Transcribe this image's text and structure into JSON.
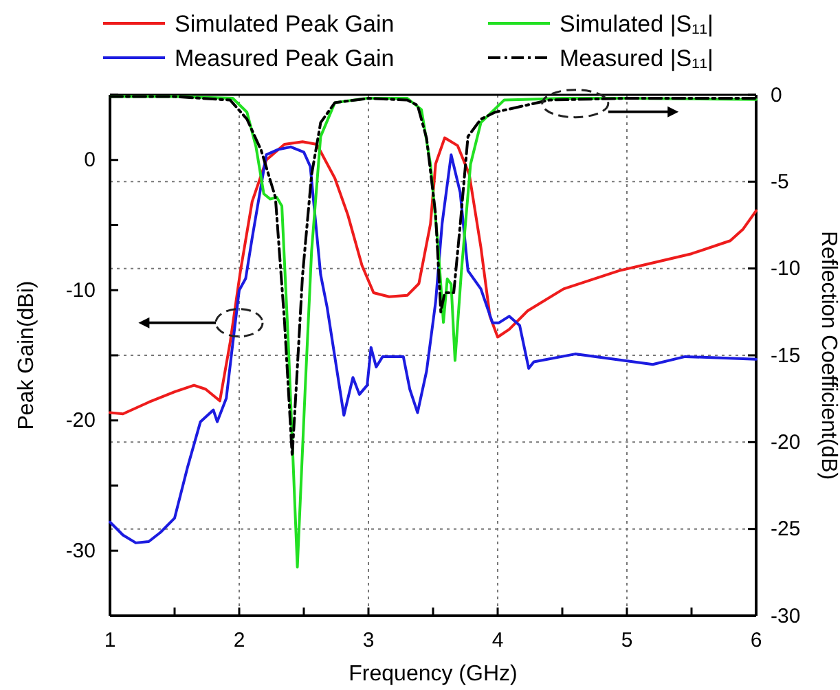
{
  "chart_data": {
    "type": "line",
    "xlabel": "Frequency (GHz)",
    "ylabel": "Peak Gain(dBi)",
    "y2label": "Reflection Coefficient(dB)",
    "xlim": [
      1,
      6
    ],
    "xticks": [
      1,
      {
        "value": 1.5,
        "label": null
      },
      2,
      {
        "value": 2.5,
        "label": null
      },
      3,
      {
        "value": 3.5,
        "label": null
      },
      4,
      {
        "value": 4.5,
        "label": null
      },
      5,
      {
        "value": 5.5,
        "label": null
      },
      6
    ],
    "ylim": [
      -35,
      5
    ],
    "yticks": [
      {
        "value": -35,
        "label": null
      },
      -30,
      {
        "value": -25,
        "label": null
      },
      -20,
      {
        "value": -15,
        "label": null
      },
      -10,
      {
        "value": -5,
        "label": null
      },
      0,
      {
        "value": 5,
        "label": null
      }
    ],
    "y2lim": [
      -30,
      0
    ],
    "y2ticks": [
      -30,
      -25,
      -20,
      -15,
      -10,
      -5,
      0
    ],
    "grid": true,
    "legend": "top",
    "line_style": "solid",
    "marker": "none",
    "series": [
      {
        "name": "Simulated Peak Gain",
        "color": "#ee1c1c",
        "x": [
          1,
          1.1,
          1.3,
          1.5,
          1.65,
          1.74,
          1.85,
          1.93,
          2.01,
          2.1,
          2.21,
          2.35,
          2.49,
          2.6,
          2.74,
          2.84,
          2.95,
          3.04,
          3.16,
          3.3,
          3.39,
          3.48,
          3.52,
          3.59,
          3.69,
          3.78,
          3.87,
          3.94,
          4.0,
          4.09,
          4.23,
          4.51,
          4.94,
          5.2,
          5.5,
          5.8,
          5.9,
          6
        ],
        "values": [
          -19.4,
          -19.5,
          -18.6,
          -17.8,
          -17.3,
          -17.6,
          -18.5,
          -14,
          -8.5,
          -3.2,
          0,
          1.2,
          1.4,
          1.2,
          -1.4,
          -4.2,
          -8.1,
          -10.2,
          -10.5,
          -10.4,
          -9.5,
          -4.9,
          -0.3,
          1.7,
          1.1,
          -1.1,
          -6.7,
          -12,
          -13.6,
          -13,
          -11.6,
          -9.9,
          -8.5,
          -7.9,
          -7.2,
          -6.2,
          -5.3,
          -3.9
        ]
      },
      {
        "name": "Measured Peak Gain",
        "color": "#1c1ce0",
        "x": [
          1,
          1.1,
          1.2,
          1.3,
          1.39,
          1.5,
          1.6,
          1.7,
          1.8,
          1.83,
          1.9,
          1.95,
          2.0,
          2.05,
          2.1,
          2.21,
          2.3,
          2.4,
          2.5,
          2.55,
          2.63,
          2.68,
          2.81,
          2.88,
          2.93,
          2.99,
          3.02,
          3.06,
          3.11,
          3.27,
          3.32,
          3.38,
          3.45,
          3.52,
          3.57,
          3.64,
          3.71,
          3.77,
          3.87,
          3.96,
          4.01,
          4.09,
          4.17,
          4.24,
          4.28,
          4.6,
          5.2,
          5.45,
          6
        ],
        "values": [
          -27.8,
          -28.8,
          -29.4,
          -29.3,
          -28.6,
          -27.5,
          -23.6,
          -20.1,
          -19.2,
          -20.1,
          -18.3,
          -14.1,
          -10,
          -9.1,
          -6,
          0.4,
          0.8,
          1.0,
          0.6,
          -0.5,
          -8.8,
          -11.3,
          -19.6,
          -16.7,
          -18,
          -17.3,
          -14.4,
          -15.9,
          -15.1,
          -15.1,
          -17.6,
          -19.4,
          -16.2,
          -10.9,
          -4.9,
          0.4,
          -2.5,
          -8.5,
          -9.9,
          -12.5,
          -12.5,
          -12.0,
          -12.7,
          -16.0,
          -15.5,
          -14.9,
          -15.7,
          -15.1,
          -15.3
        ]
      },
      {
        "name": "Simulated |S₁₁|",
        "color": "#22e022",
        "axis": "y2",
        "x": [
          1,
          1.5,
          1.95,
          2.06,
          2.13,
          2.19,
          2.24,
          2.29,
          2.33,
          2.38,
          2.45,
          2.51,
          2.56,
          2.63,
          2.74,
          2.99,
          3.3,
          3.41,
          3.48,
          3.54,
          3.58,
          3.61,
          3.64,
          3.67,
          3.72,
          3.79,
          3.87,
          4.05,
          4.5,
          5,
          6
        ],
        "values": [
          -0.1,
          -0.1,
          -0.2,
          -1.0,
          -3.0,
          -5.7,
          -6.0,
          -5.9,
          -6.4,
          -14.3,
          -27.2,
          -17.0,
          -9.0,
          -2.4,
          -0.45,
          -0.2,
          -0.2,
          -0.85,
          -4.0,
          -8.8,
          -13.1,
          -10.6,
          -10.9,
          -15.3,
          -10.1,
          -4.0,
          -1.6,
          -0.3,
          -0.2,
          -0.2,
          -0.27
        ]
      },
      {
        "name": "Measured |S₁₁|",
        "color": "#000000",
        "axis": "y2",
        "line_style": "dashed",
        "x": [
          1,
          1.5,
          1.93,
          2.06,
          2.17,
          2.28,
          2.35,
          2.41,
          2.44,
          2.49,
          2.56,
          2.63,
          2.74,
          3.0,
          3.3,
          3.38,
          3.45,
          3.52,
          3.56,
          3.59,
          3.66,
          3.71,
          3.77,
          3.87,
          3.98,
          4.4,
          5,
          6
        ],
        "values": [
          -0.1,
          -0.1,
          -0.3,
          -1.4,
          -3.2,
          -5.9,
          -13,
          -20.8,
          -17.0,
          -10.4,
          -4.6,
          -1.6,
          -0.45,
          -0.2,
          -0.3,
          -0.6,
          -2.5,
          -6.9,
          -12.5,
          -11.4,
          -11.4,
          -7.5,
          -2.4,
          -1.4,
          -1.0,
          -0.3,
          -0.2,
          -0.2
        ]
      }
    ]
  }
}
